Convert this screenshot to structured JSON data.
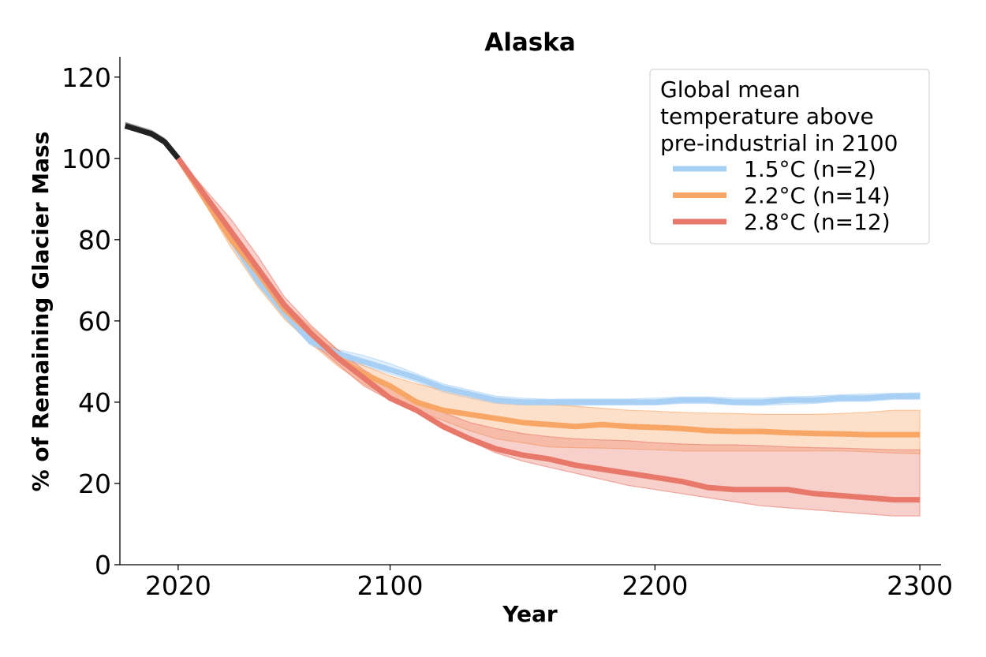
{
  "chart_data": {
    "type": "line",
    "title": "Alaska",
    "xlabel": "Year",
    "ylabel": "% of Remaining Glacier Mass",
    "xlim": [
      1998,
      2308
    ],
    "ylim": [
      0,
      125
    ],
    "x_ticks": [
      2020,
      2100,
      2200,
      2300
    ],
    "y_ticks": [
      0,
      20,
      40,
      60,
      80,
      100,
      120
    ],
    "grid": false,
    "legend": {
      "placement": "top-right",
      "title": "Global mean\ntemperature above\npre-industrial in 2100",
      "entries": [
        "1.5°C (n=2)",
        "2.2°C (n=14)",
        "2.8°C (n=12)"
      ]
    },
    "historical": {
      "color": "#222222",
      "x": [
        2000,
        2005,
        2010,
        2015,
        2020
      ],
      "upper": [
        109,
        108,
        107,
        105,
        100
      ],
      "lower": [
        107.5,
        106.5,
        105.5,
        103.5,
        99.5
      ],
      "values": [
        108,
        107,
        106,
        104,
        100
      ]
    },
    "series": [
      {
        "name": "1.5°C (n=2)",
        "color": "#a8d0f5",
        "x": [
          2020,
          2030,
          2040,
          2050,
          2060,
          2070,
          2080,
          2090,
          2100,
          2110,
          2120,
          2130,
          2140,
          2150,
          2160,
          2170,
          2180,
          2190,
          2200,
          2210,
          2220,
          2230,
          2240,
          2250,
          2260,
          2270,
          2280,
          2290,
          2300
        ],
        "values": [
          100,
          90,
          80,
          70,
          62,
          55,
          52,
          50,
          48,
          46,
          43.5,
          42,
          40.5,
          40,
          40,
          40,
          40,
          40,
          40,
          40.5,
          40.5,
          40,
          40,
          40.5,
          40.5,
          41,
          41,
          41.5,
          41.5
        ],
        "upper": [
          100,
          90.5,
          81,
          71,
          63,
          56,
          53,
          51.5,
          49.5,
          47,
          44.5,
          43,
          41.5,
          41,
          40.7,
          40.8,
          40.8,
          40.8,
          41,
          41.3,
          41.3,
          41,
          41,
          41.3,
          41.5,
          41.8,
          42,
          42.2,
          42.3
        ],
        "lower": [
          100,
          89.5,
          79,
          69,
          61,
          54,
          51,
          49,
          47,
          45,
          42.5,
          41,
          39.7,
          39.3,
          39.3,
          39.2,
          39.3,
          39.3,
          39.3,
          39.7,
          39.7,
          39.3,
          39.2,
          39.5,
          39.7,
          40.2,
          40.2,
          40.7,
          40.7
        ]
      },
      {
        "name": "2.2°C (n=14)",
        "color": "#f8a666",
        "x": [
          2020,
          2030,
          2040,
          2050,
          2060,
          2070,
          2080,
          2090,
          2100,
          2110,
          2120,
          2130,
          2140,
          2150,
          2160,
          2170,
          2180,
          2190,
          2200,
          2210,
          2220,
          2230,
          2240,
          2250,
          2260,
          2270,
          2280,
          2290,
          2300
        ],
        "values": [
          100,
          90,
          80,
          72,
          63,
          57,
          51,
          47,
          44,
          40,
          38,
          37,
          36,
          35,
          34.5,
          34,
          34.5,
          34,
          33.8,
          33.5,
          33,
          32.8,
          32.8,
          32.5,
          32.3,
          32.2,
          32,
          32,
          32
        ],
        "upper": [
          100,
          91,
          82,
          73,
          64.5,
          58.5,
          53,
          49,
          46.5,
          44.5,
          43,
          42,
          41,
          40,
          39.5,
          39,
          38.5,
          38,
          37.8,
          37.5,
          37.3,
          37.2,
          37,
          37,
          37,
          37.2,
          37.5,
          38,
          38
        ],
        "lower": [
          100,
          89,
          78,
          68.5,
          60.5,
          54.5,
          49,
          44.5,
          41,
          38,
          35.5,
          33,
          31,
          30,
          29,
          28.8,
          28.7,
          28.5,
          28.3,
          28,
          28,
          28,
          28,
          28,
          28,
          28,
          27.8,
          27.5,
          27.3
        ]
      },
      {
        "name": "2.8°C (n=12)",
        "color": "#e8796a",
        "x": [
          2020,
          2030,
          2040,
          2050,
          2060,
          2070,
          2080,
          2090,
          2100,
          2110,
          2120,
          2130,
          2140,
          2150,
          2160,
          2170,
          2180,
          2190,
          2200,
          2210,
          2220,
          2230,
          2240,
          2250,
          2260,
          2270,
          2280,
          2290,
          2300
        ],
        "values": [
          100,
          91,
          82,
          73,
          64,
          57,
          51,
          46,
          41,
          38,
          34,
          31,
          28.5,
          27,
          26,
          24.5,
          23.5,
          22.5,
          21.5,
          20.5,
          19,
          18.5,
          18.5,
          18.5,
          17.5,
          17,
          16.5,
          16,
          16
        ],
        "upper": [
          100,
          92.5,
          85,
          76,
          66,
          59,
          53,
          48,
          44,
          40.5,
          37.5,
          35,
          33.5,
          32.3,
          31.5,
          31,
          30.7,
          30.5,
          30,
          29.7,
          29.5,
          29.5,
          29.3,
          29,
          28.8,
          28.7,
          28.5,
          28.3,
          28.3
        ],
        "lower": [
          100,
          90,
          81,
          71,
          62,
          55,
          49.5,
          44,
          40.5,
          37.5,
          34.5,
          30.5,
          27.5,
          25.5,
          24,
          22.5,
          21,
          19.5,
          18.5,
          17.5,
          16.5,
          15.5,
          14.5,
          14,
          13.5,
          13,
          12.5,
          12,
          12
        ]
      }
    ]
  }
}
